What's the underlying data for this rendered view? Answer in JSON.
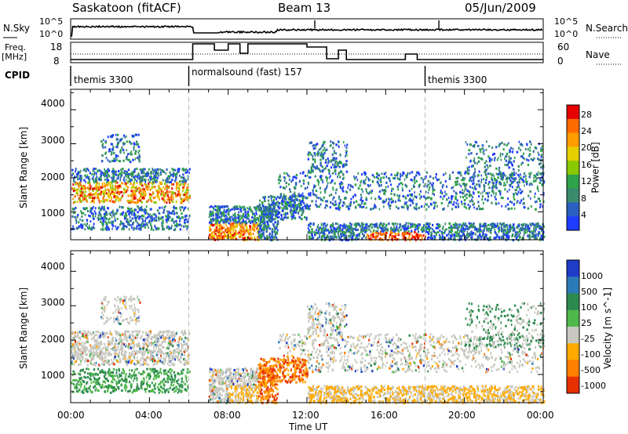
{
  "header": {
    "title_left": "Saskatoon (fitACF)",
    "title_center": "Beam 13",
    "title_right": "05/Jun/2009"
  },
  "panels": {
    "nsky": {
      "label": "N.Sky",
      "tick_top": "10^5",
      "tick_bottom": "10^0"
    },
    "nsearch": {
      "label": "N.Search",
      "tick_top": "10^5",
      "tick_bottom": "10^0"
    },
    "freq": {
      "label_line1": "Freq.",
      "label_line2": "[MHz]",
      "tick_top": "18",
      "tick_bottom": "8"
    },
    "nave": {
      "label": "Nave",
      "tick_top": "60",
      "tick_bottom": "0"
    },
    "cpid": {
      "label": "CPID",
      "segments": [
        {
          "name": "themis 3300",
          "start_h": 0,
          "end_h": 6
        },
        {
          "name": "normalsound (fast) 157",
          "start_h": 6,
          "end_h": 18
        },
        {
          "name": "themis 3300",
          "start_h": 18,
          "end_h": 24
        }
      ]
    }
  },
  "chart_data": [
    {
      "type": "heatmap",
      "title": "",
      "ylabel": "Slant Range [km]",
      "xlabel": "",
      "xlim": [
        0,
        24
      ],
      "ylim": [
        180,
        4600
      ],
      "yticks": [
        "1000",
        "2000",
        "3000",
        "4000"
      ],
      "colorbar": {
        "label": "Power [dB]",
        "ticks": [
          "4",
          "8",
          "12",
          "16",
          "20",
          "24",
          "28"
        ]
      },
      "description_of_bands": [
        {
          "x": [
            0,
            6
          ],
          "y": [
            1300,
            2200
          ],
          "level": "high"
        },
        {
          "x": [
            10.5,
            24
          ],
          "y": [
            1000,
            2100
          ],
          "level": "low"
        },
        {
          "x": [
            12,
            24
          ],
          "y": [
            200,
            600
          ],
          "level": "medium"
        }
      ]
    },
    {
      "type": "heatmap",
      "title": "",
      "ylabel": "Slant Range [km]",
      "xlabel": "Time UT",
      "xlim": [
        0,
        24
      ],
      "ylim": [
        180,
        4600
      ],
      "yticks": [
        "1000",
        "2000",
        "3000",
        "4000"
      ],
      "xticks": [
        "00:00",
        "04:00",
        "08:00",
        "12:00",
        "16:00",
        "20:00",
        "00:00"
      ],
      "colorbar": {
        "label": "Velocity [m s^-1]",
        "ticks": [
          "1000",
          "500",
          "100",
          "25",
          "-25",
          "-100",
          "-500",
          "-1000"
        ]
      }
    }
  ]
}
